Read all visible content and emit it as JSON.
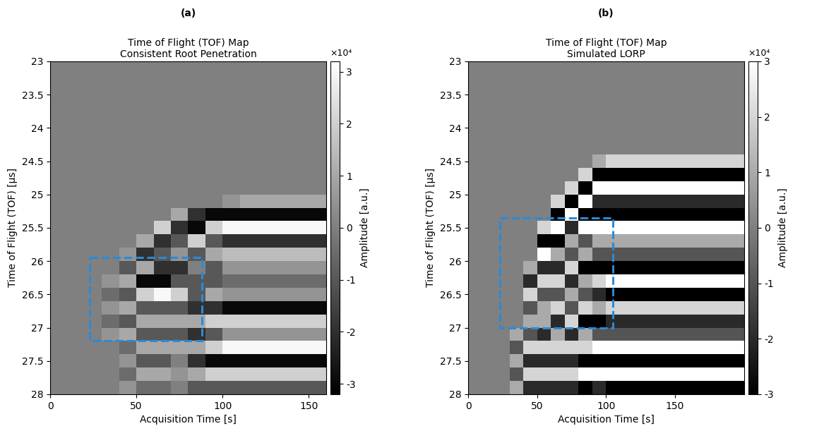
{
  "chart_data": [
    {
      "type": "heatmap",
      "panel_label": "(a)",
      "title": "Time of Flight (TOF) Map",
      "subtitle": "Consistent Root Penetration",
      "x_label": "Acquisition Time [s]",
      "y_label": "Time of Flight (TOF) [μs]",
      "xlim": [
        0,
        160
      ],
      "ylim": [
        28,
        23
      ],
      "xticks": [
        0,
        50,
        100,
        150
      ],
      "yticks": [
        23,
        23.5,
        24,
        24.5,
        25,
        25.5,
        26,
        26.5,
        27,
        27.5,
        28
      ],
      "color": "gray",
      "colorbar_label": "Amplitude [a.u.]",
      "colorbar_scale": "×10⁴",
      "color_range": [
        -3.2,
        3.2
      ],
      "colorbar_ticks": [
        -3,
        -2,
        -1,
        0,
        1,
        2,
        3
      ],
      "highlight": {
        "x": [
          23,
          88
        ],
        "y": [
          25.95,
          27.2
        ],
        "color": "#2a8ad8",
        "line_style": "dashed"
      },
      "x_edges": [
        0,
        10,
        20,
        30,
        40,
        50,
        60,
        70,
        80,
        90,
        100,
        110,
        120,
        130,
        140,
        150,
        160
      ],
      "y_edges": [
        23,
        23.2,
        23.4,
        23.6,
        23.8,
        24,
        24.2,
        24.4,
        24.6,
        24.8,
        25,
        25.2,
        25.4,
        25.6,
        25.8,
        26,
        26.2,
        26.4,
        26.6,
        26.8,
        27,
        27.2,
        27.4,
        27.6,
        27.8,
        28
      ],
      "cells": [
        [
          0,
          0,
          0,
          0,
          0,
          0,
          0,
          0,
          0,
          0,
          0,
          0,
          0,
          0,
          0,
          0
        ],
        [
          0,
          0,
          0,
          0,
          0,
          0,
          0,
          0,
          0,
          0,
          0,
          0,
          0,
          0,
          0,
          0
        ],
        [
          0,
          0,
          0,
          0,
          0,
          0,
          0,
          0,
          0,
          0,
          0,
          0,
          0,
          0,
          0,
          0
        ],
        [
          0,
          0,
          0,
          0,
          0,
          0,
          0,
          0,
          0,
          0,
          0,
          0,
          0,
          0,
          0,
          0
        ],
        [
          0,
          0,
          0,
          0,
          0,
          0,
          0,
          0,
          0,
          0,
          0,
          0,
          0,
          0,
          0,
          0
        ],
        [
          0,
          0,
          0,
          0,
          0,
          0,
          0,
          0,
          0,
          0,
          0,
          0,
          0,
          0,
          0,
          0
        ],
        [
          0,
          0,
          0,
          0,
          0,
          0,
          0,
          0,
          0,
          0,
          0,
          0,
          0,
          0,
          0,
          0
        ],
        [
          0,
          0,
          0,
          0,
          0,
          0,
          0,
          0,
          0,
          0,
          0,
          0,
          0,
          0,
          0,
          0
        ],
        [
          0,
          0,
          0,
          0,
          0,
          0,
          0,
          0,
          0,
          0,
          0,
          0,
          0,
          0,
          0,
          0
        ],
        [
          0,
          0,
          0,
          0,
          0,
          0,
          0,
          0,
          0,
          0,
          0,
          0,
          0,
          0,
          0,
          0
        ],
        [
          0,
          0,
          0,
          0,
          0,
          0,
          0,
          0,
          0,
          0,
          0.5,
          1,
          1,
          1,
          1,
          1
        ],
        [
          0,
          0,
          0,
          0,
          0,
          0,
          0,
          1,
          -2,
          -3,
          -3,
          -3,
          -3,
          -3,
          -3,
          -3
        ],
        [
          0,
          0,
          0,
          0,
          0,
          0,
          2,
          -2,
          -3,
          2,
          3,
          3,
          3,
          3,
          3,
          3
        ],
        [
          0,
          0,
          0,
          0,
          0,
          1,
          -2,
          -1,
          2,
          -1,
          -2,
          -2,
          -2,
          -2,
          -2,
          -2
        ],
        [
          0,
          0,
          0,
          0,
          0.5,
          -2,
          -1,
          0.5,
          -1,
          1,
          1.5,
          1.5,
          1.5,
          1.5,
          1.5,
          1.5
        ],
        [
          0,
          0,
          0,
          0,
          -1,
          1,
          -2,
          -2,
          0,
          -1,
          0.5,
          0.5,
          0.5,
          0.5,
          0.5,
          0.5
        ],
        [
          0,
          0,
          0,
          0.5,
          1,
          -3,
          -3,
          -1,
          -1,
          -1,
          -0.5,
          -0.5,
          -0.5,
          -0.5,
          -0.5,
          -0.5
        ],
        [
          0,
          0,
          0,
          -0.5,
          -1,
          2,
          3,
          2,
          -1,
          1,
          0.5,
          0.5,
          0.5,
          0.5,
          0.5,
          0.5
        ],
        [
          0,
          0,
          0,
          0.5,
          1,
          -1,
          -1,
          -1,
          -2,
          -2,
          -3,
          -3,
          -3,
          -3,
          -3,
          -3
        ],
        [
          0,
          0,
          0,
          -0.5,
          -1,
          1,
          1,
          1,
          1,
          2,
          2,
          2,
          2,
          2,
          2,
          2
        ],
        [
          0,
          0,
          0,
          0.5,
          1,
          -1,
          -1,
          -1,
          -2,
          -1,
          0.5,
          0.5,
          0.5,
          0.5,
          0.5,
          0.5
        ],
        [
          0,
          0,
          0,
          0,
          -0.5,
          1,
          1,
          1,
          1,
          2,
          3,
          3,
          3,
          3,
          3,
          3
        ],
        [
          0,
          0,
          0,
          0,
          0.5,
          -1,
          -1,
          0,
          -2,
          -3,
          -3,
          -3,
          -3,
          -3,
          -3,
          -3
        ],
        [
          0,
          0,
          0,
          0,
          -0.5,
          1,
          1,
          0.5,
          1,
          2,
          2,
          2,
          2,
          2,
          2,
          2
        ],
        [
          0,
          0,
          0,
          0,
          0.5,
          -0.5,
          -0.5,
          0,
          -1,
          -1,
          -1,
          -1,
          -1,
          -1,
          -1,
          -1
        ]
      ]
    },
    {
      "type": "heatmap",
      "panel_label": "(b)",
      "title": "Time of Flight (TOF) Map",
      "subtitle": "Simulated LORP",
      "x_label": "Acquisition Time [s]",
      "y_label": "Time of Flight (TOF) [μs]",
      "xlim": [
        0,
        200
      ],
      "ylim": [
        28,
        23
      ],
      "xticks": [
        0,
        50,
        100,
        150
      ],
      "yticks": [
        23,
        23.5,
        24,
        24.5,
        25,
        25.5,
        26,
        26.5,
        27,
        27.5,
        28
      ],
      "color": "gray",
      "colorbar_label": "Amplitude [a.u.]",
      "colorbar_scale": "×10⁴",
      "color_range": [
        -3,
        3
      ],
      "colorbar_ticks": [
        -3,
        -2,
        -1,
        0,
        1,
        2,
        3
      ],
      "highlight": {
        "x": [
          23,
          105
        ],
        "y": [
          25.35,
          27.0
        ],
        "color": "#2a8ad8",
        "line_style": "dashed"
      },
      "x_edges": [
        0,
        10,
        20,
        30,
        40,
        50,
        60,
        70,
        80,
        90,
        100,
        110,
        120,
        130,
        140,
        150,
        160,
        170,
        180,
        190,
        200
      ],
      "y_edges": [
        23,
        23.2,
        23.4,
        23.6,
        23.8,
        24,
        24.2,
        24.4,
        24.6,
        24.8,
        25,
        25.2,
        25.4,
        25.6,
        25.8,
        26,
        26.2,
        26.4,
        26.6,
        26.8,
        27,
        27.2,
        27.4,
        27.6,
        27.8,
        28
      ],
      "cells": [
        [
          0,
          0,
          0,
          0,
          0,
          0,
          0,
          0,
          0,
          0,
          0,
          0,
          0,
          0,
          0,
          0,
          0,
          0,
          0,
          0
        ],
        [
          0,
          0,
          0,
          0,
          0,
          0,
          0,
          0,
          0,
          0,
          0,
          0,
          0,
          0,
          0,
          0,
          0,
          0,
          0,
          0
        ],
        [
          0,
          0,
          0,
          0,
          0,
          0,
          0,
          0,
          0,
          0,
          0,
          0,
          0,
          0,
          0,
          0,
          0,
          0,
          0,
          0
        ],
        [
          0,
          0,
          0,
          0,
          0,
          0,
          0,
          0,
          0,
          0,
          0,
          0,
          0,
          0,
          0,
          0,
          0,
          0,
          0,
          0
        ],
        [
          0,
          0,
          0,
          0,
          0,
          0,
          0,
          0,
          0,
          0,
          0,
          0,
          0,
          0,
          0,
          0,
          0,
          0,
          0,
          0
        ],
        [
          0,
          0,
          0,
          0,
          0,
          0,
          0,
          0,
          0,
          0,
          0,
          0,
          0,
          0,
          0,
          0,
          0,
          0,
          0,
          0
        ],
        [
          0,
          0,
          0,
          0,
          0,
          0,
          0,
          0,
          0,
          0,
          0,
          0,
          0,
          0,
          0,
          0,
          0,
          0,
          0,
          0
        ],
        [
          0,
          0,
          0,
          0,
          0,
          0,
          0,
          0,
          0,
          1,
          2,
          2,
          2,
          2,
          2,
          2,
          2,
          2,
          2,
          2
        ],
        [
          0,
          0,
          0,
          0,
          0,
          0,
          0,
          0,
          2,
          -3,
          -3,
          -3,
          -3,
          -3,
          -3,
          -3,
          -3,
          -3,
          -3,
          -3
        ],
        [
          0,
          0,
          0,
          0,
          0,
          0,
          0,
          2,
          -3,
          3,
          3,
          3,
          3,
          3,
          3,
          3,
          3,
          3,
          3,
          3
        ],
        [
          0,
          0,
          0,
          0,
          0,
          0,
          2,
          -3,
          3,
          -2,
          -2,
          -2,
          -2,
          -2,
          -2,
          -2,
          -2,
          -2,
          -2,
          -2
        ],
        [
          0,
          0,
          0,
          0,
          0,
          0,
          -3,
          3,
          -3,
          -3,
          -3,
          -3,
          -3,
          -3,
          -3,
          -3,
          -3,
          -3,
          -3,
          -3
        ],
        [
          0,
          0,
          0,
          0,
          0,
          2,
          3,
          -2,
          3,
          3,
          3,
          3,
          3,
          3,
          3,
          3,
          3,
          3,
          3,
          3
        ],
        [
          0,
          0,
          0,
          0,
          0,
          -3,
          -3,
          1,
          -1,
          1,
          1,
          1,
          1,
          1,
          1,
          1,
          1,
          1,
          1,
          1
        ],
        [
          0,
          0,
          0,
          0,
          0,
          3,
          1,
          -1,
          1,
          -1,
          -1,
          -1,
          -1,
          -1,
          -1,
          -1,
          -1,
          -1,
          -1,
          -1
        ],
        [
          0,
          0,
          0,
          0,
          1,
          -2,
          -2,
          2,
          -3,
          -3,
          -3,
          -3,
          -3,
          -3,
          -3,
          -3,
          -3,
          -3,
          -3,
          -3
        ],
        [
          0,
          0,
          0,
          0,
          -2,
          2,
          2,
          -2,
          1,
          2,
          3,
          3,
          3,
          3,
          3,
          3,
          3,
          3,
          3,
          3
        ],
        [
          0,
          0,
          0,
          0,
          2,
          -1,
          -1,
          1,
          -1,
          -2,
          -3,
          -3,
          -3,
          -3,
          -3,
          -3,
          -3,
          -3,
          -3,
          -3
        ],
        [
          0,
          0,
          0,
          0,
          -1,
          1,
          2,
          -1,
          2,
          1,
          2,
          2,
          2,
          2,
          2,
          2,
          2,
          2,
          2,
          2
        ],
        [
          0,
          0,
          0,
          0,
          1,
          1,
          -2,
          2,
          -3,
          -3,
          -2,
          -2,
          -2,
          -2,
          -2,
          -2,
          -2,
          -2,
          -2,
          -2
        ],
        [
          0,
          0,
          0,
          1,
          -1,
          -2,
          1,
          -2,
          1,
          -1,
          -1,
          -1,
          -1,
          -1,
          -1,
          -1,
          -1,
          -1,
          -1,
          -1
        ],
        [
          0,
          0,
          0,
          -1,
          2,
          2,
          2,
          2,
          2,
          3,
          3,
          3,
          3,
          3,
          3,
          3,
          3,
          3,
          3,
          3
        ],
        [
          0,
          0,
          0,
          1,
          -2,
          -2,
          -2,
          -2,
          -3,
          -3,
          -3,
          -3,
          -3,
          -3,
          -3,
          -3,
          -3,
          -3,
          -3,
          -3
        ],
        [
          0,
          0,
          0,
          -1,
          2,
          2,
          2,
          2,
          3,
          3,
          3,
          3,
          3,
          3,
          3,
          3,
          3,
          3,
          3,
          3
        ],
        [
          0,
          0,
          0,
          1,
          -2,
          -2,
          -2,
          -2,
          -3,
          -2,
          -3,
          -3,
          -3,
          -3,
          -3,
          -3,
          -3,
          -3,
          -3,
          -3
        ]
      ]
    }
  ]
}
